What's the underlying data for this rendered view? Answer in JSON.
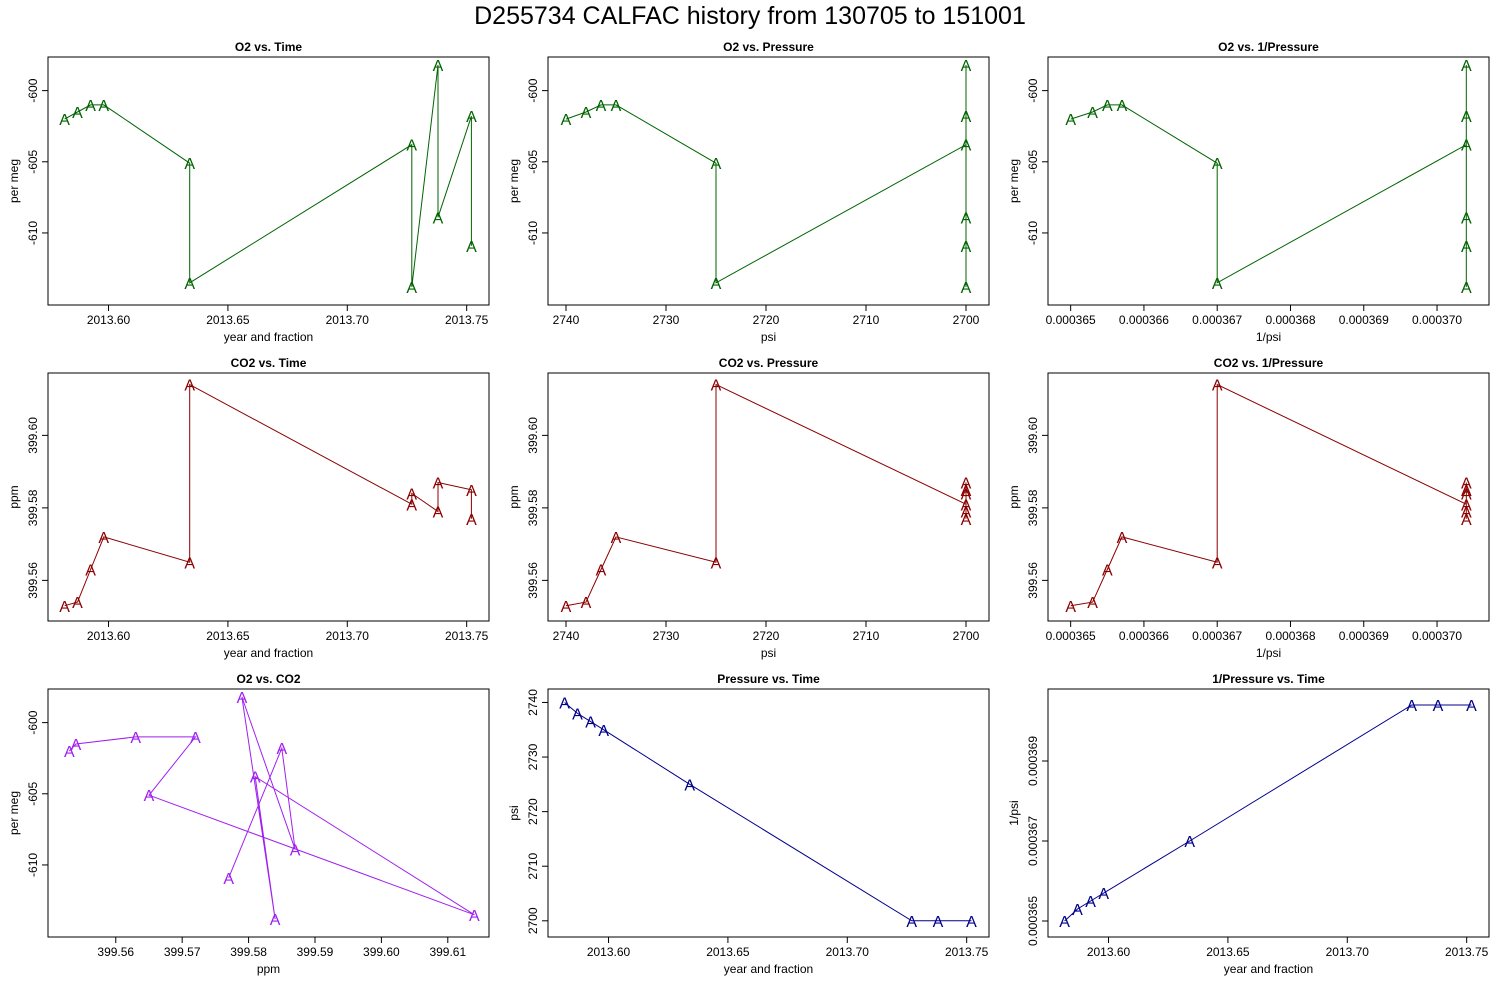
{
  "page_title": "D255734   CALFAC history from  130705  to  151001",
  "colors": {
    "o2": "#006400",
    "co2": "#8b0000",
    "o2co2": "#a020f0",
    "pressure": "#00008b"
  },
  "marker_label": "A",
  "chart_data": [
    {
      "type": "line",
      "title": "O2 vs. Time",
      "xlabel": "year and fraction",
      "ylabel": "per meg",
      "color_key": "o2",
      "xlim": [
        2013.578,
        2013.756
      ],
      "ylim": [
        -614.5,
        -598.2
      ],
      "xticks": [
        2013.6,
        2013.65,
        2013.7,
        2013.75
      ],
      "xtick_labels": [
        "2013.60",
        "2013.65",
        "2013.70",
        "2013.75"
      ],
      "yticks": [
        -600,
        -605,
        -610
      ],
      "ytick_labels": [
        "-600",
        "-605",
        "-610"
      ],
      "x": [
        2013.5816,
        2013.587,
        2013.5925,
        2013.598,
        2013.634,
        2013.634,
        2013.727,
        2013.727,
        2013.738,
        2013.738,
        2013.752,
        2013.752
      ],
      "y": [
        -602.0,
        -601.5,
        -601.0,
        -601.0,
        -605.1,
        -613.5,
        -603.8,
        -613.8,
        -598.2,
        -608.9,
        -601.8,
        -610.9
      ]
    },
    {
      "type": "line",
      "title": "O2 vs. Pressure",
      "xlabel": "psi",
      "ylabel": "per meg",
      "color_key": "o2",
      "x_reversed": true,
      "xlim": [
        2741.0,
        2698.5
      ],
      "ylim": [
        -614.5,
        -598.2
      ],
      "xticks": [
        2740,
        2730,
        2720,
        2710,
        2700
      ],
      "xtick_labels": [
        "2740",
        "2730",
        "2720",
        "2710",
        "2700"
      ],
      "yticks": [
        -600,
        -605,
        -610
      ],
      "ytick_labels": [
        "-600",
        "-605",
        "-610"
      ],
      "x": [
        2740.0,
        2738.0,
        2736.5,
        2735.0,
        2725.0,
        2725.0,
        2700.0,
        2700.0,
        2700.0,
        2700.0,
        2700.0,
        2700.0
      ],
      "y": [
        -602.0,
        -601.5,
        -601.0,
        -601.0,
        -605.1,
        -613.5,
        -603.8,
        -613.8,
        -598.2,
        -608.9,
        -601.8,
        -610.9
      ]
    },
    {
      "type": "line",
      "title": "O2 vs. 1/Pressure",
      "xlabel": "1/psi",
      "ylabel": "per meg",
      "color_key": "o2",
      "xlim": [
        0.0003648,
        0.0003706
      ],
      "ylim": [
        -614.5,
        -598.2
      ],
      "xticks": [
        0.000365,
        0.000366,
        0.000367,
        0.000368,
        0.000369,
        0.00037
      ],
      "xtick_labels": [
        "0.000365",
        "0.000366",
        "0.000367",
        "0.000368",
        "0.000369",
        "0.000370"
      ],
      "yticks": [
        -600,
        -605,
        -610
      ],
      "ytick_labels": [
        "-600",
        "-605",
        "-610"
      ],
      "x": [
        0.000365,
        0.0003653,
        0.0003655,
        0.0003657,
        0.000367,
        0.000367,
        0.0003704,
        0.0003704,
        0.0003704,
        0.0003704,
        0.0003704,
        0.0003704
      ],
      "y": [
        -602.0,
        -601.5,
        -601.0,
        -601.0,
        -605.1,
        -613.5,
        -603.8,
        -613.8,
        -598.2,
        -608.9,
        -601.8,
        -610.9
      ]
    },
    {
      "type": "line",
      "title": "CO2 vs. Time",
      "xlabel": "year and fraction",
      "ylabel": "ppm",
      "color_key": "co2",
      "xlim": [
        2013.578,
        2013.756
      ],
      "ylim": [
        399.551,
        399.615
      ],
      "xticks": [
        2013.6,
        2013.65,
        2013.7,
        2013.75
      ],
      "xtick_labels": [
        "2013.60",
        "2013.65",
        "2013.70",
        "2013.75"
      ],
      "yticks": [
        399.56,
        399.58,
        399.6
      ],
      "ytick_labels": [
        "399.56",
        "399.58",
        "399.60"
      ],
      "x": [
        2013.5816,
        2013.587,
        2013.5925,
        2013.598,
        2013.634,
        2013.634,
        2013.727,
        2013.727,
        2013.738,
        2013.738,
        2013.752,
        2013.752
      ],
      "y": [
        399.553,
        399.554,
        399.563,
        399.572,
        399.565,
        399.614,
        399.581,
        399.584,
        399.579,
        399.587,
        399.585,
        399.577
      ]
    },
    {
      "type": "line",
      "title": "CO2 vs. Pressure",
      "xlabel": "psi",
      "ylabel": "ppm",
      "color_key": "co2",
      "x_reversed": true,
      "xlim": [
        2741.0,
        2698.5
      ],
      "ylim": [
        399.551,
        399.615
      ],
      "xticks": [
        2740,
        2730,
        2720,
        2710,
        2700
      ],
      "xtick_labels": [
        "2740",
        "2730",
        "2720",
        "2710",
        "2700"
      ],
      "yticks": [
        399.56,
        399.58,
        399.6
      ],
      "ytick_labels": [
        "399.56",
        "399.58",
        "399.60"
      ],
      "x": [
        2740.0,
        2738.0,
        2736.5,
        2735.0,
        2725.0,
        2725.0,
        2700.0,
        2700.0,
        2700.0,
        2700.0,
        2700.0,
        2700.0
      ],
      "y": [
        399.553,
        399.554,
        399.563,
        399.572,
        399.565,
        399.614,
        399.581,
        399.584,
        399.579,
        399.587,
        399.585,
        399.577
      ]
    },
    {
      "type": "line",
      "title": "CO2 vs. 1/Pressure",
      "xlabel": "1/psi",
      "ylabel": "ppm",
      "color_key": "co2",
      "xlim": [
        0.0003648,
        0.0003706
      ],
      "ylim": [
        399.551,
        399.615
      ],
      "xticks": [
        0.000365,
        0.000366,
        0.000367,
        0.000368,
        0.000369,
        0.00037
      ],
      "xtick_labels": [
        "0.000365",
        "0.000366",
        "0.000367",
        "0.000368",
        "0.000369",
        "0.000370"
      ],
      "yticks": [
        399.56,
        399.58,
        399.6
      ],
      "ytick_labels": [
        "399.56",
        "399.58",
        "399.60"
      ],
      "x": [
        0.000365,
        0.0003653,
        0.0003655,
        0.0003657,
        0.000367,
        0.000367,
        0.0003704,
        0.0003704,
        0.0003704,
        0.0003704,
        0.0003704,
        0.0003704
      ],
      "y": [
        399.553,
        399.554,
        399.563,
        399.572,
        399.565,
        399.614,
        399.581,
        399.584,
        399.579,
        399.587,
        399.585,
        399.577
      ]
    },
    {
      "type": "line",
      "title": "O2 vs. CO2",
      "xlabel": "ppm",
      "ylabel": "per meg",
      "color_key": "o2co2",
      "xlim": [
        399.551,
        399.615
      ],
      "ylim": [
        -614.5,
        -598.2
      ],
      "xticks": [
        399.56,
        399.57,
        399.58,
        399.59,
        399.6,
        399.61
      ],
      "xtick_labels": [
        "399.56",
        "399.57",
        "399.58",
        "399.59",
        "399.60",
        "399.61"
      ],
      "yticks": [
        -600,
        -605,
        -610
      ],
      "ytick_labels": [
        "-600",
        "-605",
        "-610"
      ],
      "x": [
        399.553,
        399.554,
        399.563,
        399.572,
        399.565,
        399.614,
        399.581,
        399.584,
        399.579,
        399.587,
        399.585,
        399.577
      ],
      "y": [
        -602.0,
        -601.5,
        -601.0,
        -601.0,
        -605.1,
        -613.5,
        -603.8,
        -613.8,
        -598.2,
        -608.9,
        -601.8,
        -610.9
      ]
    },
    {
      "type": "line",
      "title": "Pressure vs. Time",
      "xlabel": "year and fraction",
      "ylabel": "psi",
      "color_key": "pressure",
      "xlim": [
        2013.578,
        2013.756
      ],
      "ylim": [
        2698.5,
        2741.0
      ],
      "xticks": [
        2013.6,
        2013.65,
        2013.7,
        2013.75
      ],
      "xtick_labels": [
        "2013.60",
        "2013.65",
        "2013.70",
        "2013.75"
      ],
      "yticks": [
        2700,
        2710,
        2720,
        2730,
        2740
      ],
      "ytick_labels": [
        "2700",
        "2710",
        "2720",
        "2730",
        "2740"
      ],
      "x": [
        2013.5816,
        2013.587,
        2013.5925,
        2013.598,
        2013.634,
        2013.727,
        2013.738,
        2013.752
      ],
      "y": [
        2740.0,
        2738.0,
        2736.5,
        2735.0,
        2725.0,
        2700.0,
        2700.0,
        2700.0
      ]
    },
    {
      "type": "line",
      "title": "1/Pressure vs. Time",
      "xlabel": "year and fraction",
      "ylabel": "1/psi",
      "color_key": "pressure",
      "xlim": [
        2013.578,
        2013.756
      ],
      "ylim": [
        0.0003648,
        0.0003706
      ],
      "xticks": [
        2013.6,
        2013.65,
        2013.7,
        2013.75
      ],
      "xtick_labels": [
        "2013.60",
        "2013.65",
        "2013.70",
        "2013.75"
      ],
      "yticks": [
        0.000365,
        0.000367,
        0.000369
      ],
      "ytick_labels": [
        "0.000365",
        "0.000367",
        "0.000369"
      ],
      "x": [
        2013.5816,
        2013.587,
        2013.5925,
        2013.598,
        2013.634,
        2013.727,
        2013.738,
        2013.752
      ],
      "y": [
        0.000365,
        0.0003653,
        0.0003655,
        0.0003657,
        0.000367,
        0.0003704,
        0.0003704,
        0.0003704
      ]
    }
  ]
}
